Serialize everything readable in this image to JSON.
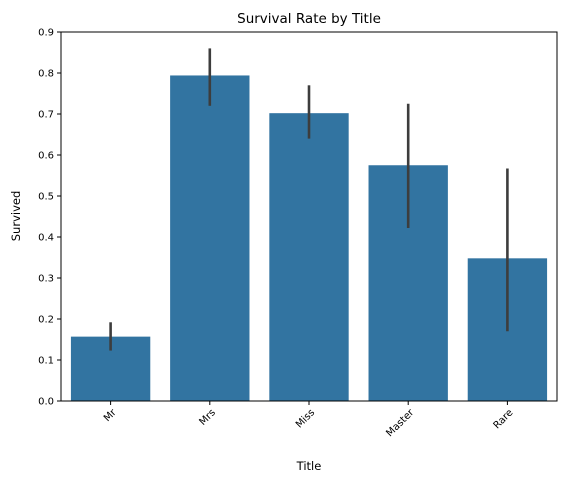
{
  "chart_data": {
    "type": "bar",
    "title": "Survival Rate by Title",
    "xlabel": "Title",
    "ylabel": "Survived",
    "categories": [
      "Mr",
      "Mrs",
      "Miss",
      "Master",
      "Rare"
    ],
    "values": [
      0.157,
      0.794,
      0.702,
      0.575,
      0.348
    ],
    "error_low": [
      0.123,
      0.72,
      0.64,
      0.422,
      0.17
    ],
    "error_high": [
      0.192,
      0.86,
      0.77,
      0.725,
      0.567
    ],
    "ylim": [
      0,
      0.9
    ],
    "yticks": [
      "0.0",
      "0.1",
      "0.2",
      "0.3",
      "0.4",
      "0.5",
      "0.6",
      "0.7",
      "0.8",
      "0.9"
    ],
    "bar_color": "#3274a1",
    "error_color": "#3d3d3d",
    "grid": false,
    "xtick_rotation": 45
  }
}
